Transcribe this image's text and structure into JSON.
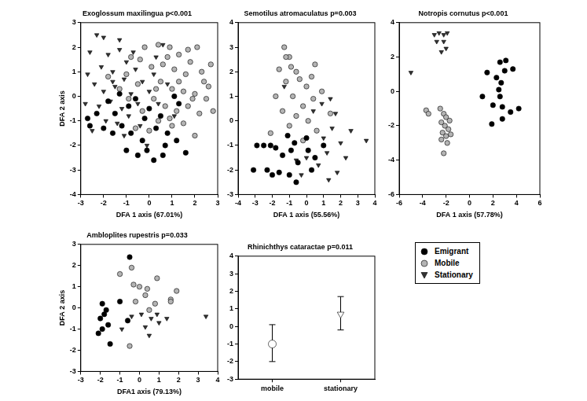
{
  "chart_data": [
    {
      "type": "scatter",
      "title": "Exoglossum maxilingua p<0.001",
      "xlabel": "DFA 1 axis (67.01%)",
      "ylabel": "DFA 2 axis",
      "xlim": [
        -3,
        3
      ],
      "ylim": [
        -4,
        3
      ],
      "xticks": [
        -3,
        -2,
        -1,
        0,
        1,
        2,
        3
      ],
      "yticks": [
        -4,
        -3,
        -2,
        -1,
        0,
        1,
        2,
        3
      ],
      "grid": false,
      "series": [
        {
          "name": "Emigrant",
          "color": "#000000",
          "marker": "circle",
          "x": [
            -2.6,
            -2.0,
            -1.6,
            -1.2,
            -0.8,
            -0.3,
            -1.0,
            -0.5,
            0.2,
            0.7,
            1.2,
            1.6,
            -1.5,
            -0.9,
            -0.2,
            0.3,
            0.8,
            1.3,
            -1.8,
            -2.3,
            0.0,
            0.5,
            -0.6,
            1.1,
            -2.7,
            -1.3,
            0.6,
            -0.1
          ],
          "values": [
            -1.2,
            -1.3,
            -1.5,
            -1.2,
            -1.5,
            -1.8,
            -2.2,
            -2.4,
            -2.6,
            -2.0,
            -1.8,
            -2.3,
            -0.7,
            -0.4,
            -0.9,
            -1.3,
            -1.5,
            -0.3,
            -0.2,
            -0.7,
            -0.5,
            -0.8,
            -0.1,
            0.0,
            -0.9,
            0.1,
            -2.4,
            -2.2
          ]
        },
        {
          "name": "Mobile",
          "color": "#b4b4b4",
          "marker": "circle",
          "x": [
            -0.2,
            0.4,
            0.9,
            1.3,
            1.8,
            2.1,
            0.6,
            1.1,
            1.6,
            2.3,
            2.6,
            0.1,
            0.5,
            1.0,
            1.5,
            2.0,
            2.5,
            2.8,
            -0.5,
            0.2,
            0.7,
            1.2,
            1.7,
            2.2,
            -0.9,
            -0.3,
            0.4,
            1.0,
            1.5,
            2.0,
            -1.3,
            -0.8,
            0.8,
            1.9,
            2.4,
            0.0,
            -0.6,
            1.3,
            0.3,
            -1.8,
            2.7,
            1.7,
            -0.4,
            0.9,
            -1.0
          ],
          "values": [
            2.0,
            2.1,
            2.0,
            1.7,
            1.4,
            2.0,
            1.3,
            1.1,
            0.9,
            1.0,
            0.4,
            1.2,
            0.6,
            0.3,
            0.2,
            0.1,
            -0.1,
            -0.6,
            0.5,
            -0.1,
            -0.4,
            -0.6,
            -0.4,
            -0.7,
            -0.1,
            -0.6,
            -1.0,
            -1.2,
            -1.1,
            -1.6,
            0.3,
            1.6,
            1.6,
            -0.1,
            0.6,
            -1.4,
            -1.3,
            0.6,
            0.3,
            0.8,
            1.3,
            1.9,
            1.5,
            -0.9,
            0.9
          ]
        },
        {
          "name": "Stationary",
          "color": "#333333",
          "marker": "triangle_down",
          "x": [
            -2.3,
            -2.0,
            -2.6,
            -1.8,
            -1.3,
            -2.1,
            -1.6,
            -1.0,
            -2.4,
            -2.0,
            -1.5,
            -1.1,
            -0.6,
            -2.8,
            -2.2,
            -1.7,
            -1.2,
            -0.8,
            -0.3,
            0.2,
            -1.9,
            -1.4,
            -0.9,
            -0.5,
            0.0,
            -2.5,
            -1.1,
            -0.4,
            0.4,
            0.8,
            -1.6,
            -0.7,
            0.3,
            -2.7,
            1.1,
            -0.1,
            -1.3,
            0.6
          ],
          "values": [
            2.5,
            2.4,
            1.8,
            1.7,
            1.9,
            1.2,
            1.0,
            1.4,
            0.5,
            0.2,
            0.4,
            0.7,
            1.1,
            -0.3,
            -0.4,
            -0.2,
            -0.5,
            0.1,
            0.6,
            0.9,
            -1.0,
            -1.1,
            -0.8,
            -0.3,
            0.2,
            -1.4,
            -1.6,
            -1.2,
            -0.3,
            0.5,
            0.6,
            1.8,
            1.6,
            0.9,
            -0.8,
            -2.0,
            2.3,
            2.1
          ]
        }
      ]
    },
    {
      "type": "scatter",
      "title": "Semotilus atromaculatus p=0.003",
      "xlabel": "DFA 1 axis (55.56%)",
      "xlim": [
        -4,
        4
      ],
      "ylim": [
        -3,
        4
      ],
      "xticks": [
        -4,
        -3,
        -2,
        -1,
        0,
        1,
        2,
        3,
        4
      ],
      "yticks": [
        -3,
        -2,
        -1,
        0,
        1,
        2,
        3,
        4
      ],
      "grid": false,
      "series": [
        {
          "name": "Emigrant",
          "color": "#000000",
          "marker": "circle",
          "x": [
            -3.1,
            -2.9,
            -2.5,
            -2.1,
            -2.3,
            -2.0,
            -1.6,
            -1.0,
            -1.8,
            -1.4,
            -0.9,
            -0.7,
            0.0,
            0.1,
            0.3,
            -0.6,
            -1.1,
            0.5,
            1.0,
            -0.5
          ],
          "values": [
            -2.0,
            -1.0,
            -1.0,
            -1.0,
            -2.0,
            -2.2,
            -2.1,
            -2.2,
            -1.1,
            -1.4,
            -1.2,
            -0.9,
            -0.7,
            -1.2,
            -2.0,
            -2.5,
            -0.6,
            -1.5,
            -1.0,
            -1.7
          ]
        },
        {
          "name": "Mobile",
          "color": "#b4b4b4",
          "marker": "circle",
          "x": [
            -1.3,
            -1.0,
            -0.9,
            -1.6,
            -0.6,
            0.5,
            -0.4,
            -1.2,
            0.0,
            0.9,
            -1.8,
            -0.8,
            0.4,
            -0.2,
            -1.4,
            0.1,
            -0.6,
            1.4,
            -1.0,
            0.6,
            -0.2,
            -2.1,
            0.3,
            -1.2
          ],
          "values": [
            3.0,
            2.6,
            2.2,
            2.1,
            2.0,
            2.3,
            1.7,
            1.6,
            1.4,
            1.2,
            1.0,
            1.0,
            0.9,
            0.6,
            0.4,
            0.0,
            0.2,
            0.3,
            -0.2,
            -0.4,
            -0.8,
            -0.5,
            1.8,
            2.6
          ]
        },
        {
          "name": "Stationary",
          "color": "#333333",
          "marker": "triangle_down",
          "x": [
            3.5,
            2.6,
            1.5,
            1.7,
            1.0,
            1.2,
            0.7,
            1.8,
            2.0,
            0.9,
            0.0,
            -0.3,
            -0.6,
            1.3,
            2.3,
            -1.3,
            0.4,
            1.4
          ],
          "values": [
            -0.8,
            -0.4,
            -0.3,
            0.3,
            -0.7,
            -1.3,
            -1.8,
            -2.1,
            -0.9,
            0.7,
            -1.5,
            -2.2,
            -1.6,
            -2.4,
            -1.5,
            1.4,
            0.4,
            0.9
          ]
        }
      ]
    },
    {
      "type": "scatter",
      "title": "Notropis cornutus p<0.001",
      "xlabel": "DFA 1 axis (57.78%)",
      "xlim": [
        -6,
        6
      ],
      "ylim": [
        -6,
        4
      ],
      "xticks": [
        -6,
        -4,
        -2,
        0,
        2,
        4,
        6
      ],
      "yticks": [
        -6,
        -4,
        -2,
        0,
        2,
        4
      ],
      "grid": false,
      "series": [
        {
          "name": "Emigrant",
          "color": "#000000",
          "marker": "circle",
          "x": [
            2.6,
            3.1,
            1.5,
            3.0,
            3.7,
            2.3,
            2.7,
            2.5,
            1.1,
            2.0,
            2.8,
            3.5,
            4.2,
            1.9,
            2.8,
            2.6
          ],
          "values": [
            1.7,
            1.8,
            1.1,
            1.2,
            1.3,
            0.8,
            0.5,
            0.1,
            -0.3,
            -0.8,
            -0.9,
            -1.2,
            -1.0,
            -1.9,
            -1.6,
            -0.3
          ]
        },
        {
          "name": "Mobile",
          "color": "#b4b4b4",
          "marker": "circle",
          "x": [
            -3.7,
            -3.5,
            -2.5,
            -2.2,
            -2.0,
            -2.4,
            -2.1,
            -1.8,
            -2.3,
            -2.0,
            -1.6,
            -2.4,
            -1.9,
            -2.2,
            -1.7
          ],
          "values": [
            -1.1,
            -1.3,
            -1.0,
            -1.3,
            -1.5,
            -1.8,
            -2.0,
            -2.2,
            -2.4,
            -2.6,
            -2.5,
            -2.8,
            -3.0,
            -3.6,
            -1.7
          ]
        },
        {
          "name": "Stationary",
          "color": "#333333",
          "marker": "triangle_down",
          "x": [
            -5.0,
            -3.0,
            -2.6,
            -2.2,
            -1.9,
            -2.8,
            -2.2,
            -2.4,
            -2.0
          ],
          "values": [
            1.1,
            3.3,
            3.4,
            3.3,
            3.4,
            2.9,
            2.9,
            2.3,
            2.5
          ]
        }
      ]
    },
    {
      "type": "scatter",
      "title": "Ambloplites rupestris p=0.033",
      "xlabel": "DFA1 axis (79.13%)",
      "ylabel": "DFA 2 axis",
      "xlim": [
        -3,
        4
      ],
      "ylim": [
        -3,
        3
      ],
      "xticks": [
        -3,
        -2,
        -1,
        0,
        1,
        2,
        3,
        4
      ],
      "yticks": [
        -3,
        -2,
        -1,
        0,
        1,
        2,
        3
      ],
      "grid": false,
      "series": [
        {
          "name": "Emigrant",
          "color": "#000000",
          "marker": "circle",
          "x": [
            -0.5,
            -1.7,
            -1.8,
            -2.0,
            -1.6,
            -1.9,
            -2.1,
            -1.5,
            -0.6,
            -1.0,
            -1.9
          ],
          "values": [
            2.4,
            -0.1,
            -0.3,
            -0.5,
            -0.8,
            -1.0,
            -1.2,
            -1.7,
            -0.6,
            0.3,
            0.2
          ]
        },
        {
          "name": "Mobile",
          "color": "#b4b4b4",
          "marker": "circle",
          "x": [
            -1.0,
            -0.4,
            -0.3,
            0.0,
            0.4,
            0.9,
            0.3,
            -0.2,
            1.6,
            1.9,
            0.8,
            -0.5,
            1.6,
            0.5
          ],
          "values": [
            1.6,
            1.9,
            1.1,
            1.0,
            0.9,
            1.4,
            0.6,
            0.3,
            0.4,
            0.8,
            0.2,
            -1.8,
            0.3,
            -0.1
          ]
        },
        {
          "name": "Stationary",
          "color": "#333333",
          "marker": "triangle_down",
          "x": [
            0.1,
            0.3,
            0.6,
            1.0,
            1.4,
            0.9,
            -0.9,
            0.5,
            3.4,
            -0.4
          ],
          "values": [
            -0.3,
            -0.9,
            -0.5,
            -0.7,
            -0.5,
            -0.3,
            -1.0,
            -1.3,
            -0.4,
            -0.4
          ]
        }
      ]
    },
    {
      "type": "scatter",
      "title": "Rhinichthys cataractae p=0.011",
      "categories": [
        "mobile",
        "stationary"
      ],
      "ylim": [
        -3,
        4
      ],
      "yticks": [
        -3,
        -2,
        -1,
        0,
        1,
        2,
        3,
        4
      ],
      "grid": false,
      "series": [
        {
          "name": "mobile",
          "color": "#ffffff",
          "marker": "circle",
          "values": [
            -1.0,
            null
          ],
          "lower": [
            -2.0,
            null
          ],
          "upper": [
            0.1,
            null
          ]
        },
        {
          "name": "stationary",
          "color": "#ffffff",
          "marker": "triangle_down",
          "values": [
            null,
            0.7
          ],
          "lower": [
            null,
            -0.2
          ],
          "upper": [
            null,
            1.7
          ]
        }
      ]
    }
  ]
}
